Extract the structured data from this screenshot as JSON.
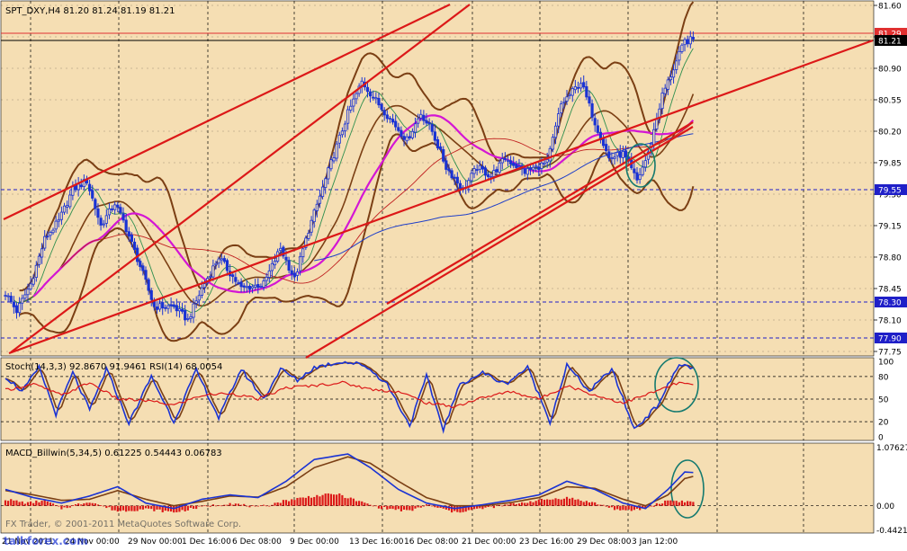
{
  "colors": {
    "panel_bg": "#f5deb3",
    "price_axis_bg": "#ffffff",
    "bull_candle": "#1a33d4",
    "bear_candle": "#1a33d4",
    "bollinger": "#7b3f14",
    "ma_fast": "#2f8f4f",
    "ma_magenta": "#d416d4",
    "ma_red": "#c02020",
    "ma_blue": "#1f3fc8",
    "trendline": "#dc1818",
    "hline_dash": "#1f1fc8",
    "ellipse": "#157a6f",
    "stoch_main": "#1a33d4",
    "stoch_signal": "#7b3f14",
    "rsi": "#dc1818",
    "macd_hist": "#dc1818",
    "macd_line": "#1a33d4",
    "macd_signal": "#7b3f14",
    "text": "#000000"
  },
  "price_panel": {
    "header": "SPT_DXY,H4  81.20 81.24 81.19 81.21",
    "ticks": [
      "81.60",
      "81.25",
      "80.90",
      "80.55",
      "80.20",
      "79.85",
      "79.50",
      "79.15",
      "78.80",
      "78.45",
      "78.10",
      "77.75"
    ],
    "tick_values": [
      81.6,
      81.25,
      80.9,
      80.55,
      80.2,
      79.85,
      79.5,
      79.15,
      78.8,
      78.45,
      78.1,
      77.75
    ],
    "ylim": [
      77.7,
      81.65
    ],
    "markers": [
      {
        "label": "81.29",
        "value": 81.29,
        "bg": "#e03030"
      },
      {
        "label": "81.21",
        "value": 81.21,
        "bg": "#000000"
      },
      {
        "label": "79.55",
        "value": 79.55,
        "bg": "#1f1fc8"
      },
      {
        "label": "78.30",
        "value": 78.3,
        "bg": "#1f1fc8"
      },
      {
        "label": "77.90",
        "value": 77.9,
        "bg": "#1f1fc8"
      }
    ]
  },
  "stoch_panel": {
    "header": "Stoch(14,3,3) 92.8670 91.9461  RSI(14) 68.0054",
    "ticks": [
      "100",
      "80",
      "50",
      "20",
      "0"
    ],
    "tick_values": [
      100,
      80,
      50,
      20,
      0
    ],
    "ylim": [
      -5,
      105
    ]
  },
  "macd_panel": {
    "header": "MACD_Billwin(5,34,5) 0.61225 0.54443 0.06783",
    "ticks": [
      "1.07627",
      "0.00",
      "-0.44218"
    ],
    "tick_values": [
      1.07627,
      0.0,
      -0.44218
    ],
    "ylim": [
      -0.5,
      1.15
    ]
  },
  "time_axis": {
    "labels": [
      "21 Nov 2011",
      "24 Nov 00:00",
      "29 Nov 00:00",
      "1 Dec 16:00",
      "6 Dec 08:00",
      "9 Dec 00:00",
      "13 Dec 16:00",
      "16 Dec 08:00",
      "21 Dec 00:00",
      "23 Dec 16:00",
      "29 Dec 08:00",
      "3 Jan 12:00"
    ]
  },
  "watermark": {
    "text": "FX Trader, © 2001-2011 MetaQuotes Software Corp.",
    "site": "talkforex.com"
  },
  "chart_data": {
    "type": "candlestick",
    "title": "SPT_DXY,H4",
    "last_quote": {
      "open": 81.2,
      "high": 81.24,
      "low": 81.19,
      "close": 81.21
    },
    "price_anchors": [
      [
        0,
        78.4
      ],
      [
        4,
        78.2
      ],
      [
        9,
        78.5
      ],
      [
        14,
        79.0
      ],
      [
        19,
        79.2
      ],
      [
        24,
        79.55
      ],
      [
        29,
        79.65
      ],
      [
        34,
        79.15
      ],
      [
        39,
        79.4
      ],
      [
        42,
        79.2
      ],
      [
        48,
        78.7
      ],
      [
        53,
        78.25
      ],
      [
        60,
        78.25
      ],
      [
        65,
        78.1
      ],
      [
        70,
        78.45
      ],
      [
        76,
        78.8
      ],
      [
        84,
        78.45
      ],
      [
        92,
        78.5
      ],
      [
        98,
        78.9
      ],
      [
        103,
        78.55
      ],
      [
        108,
        79.1
      ],
      [
        116,
        79.85
      ],
      [
        122,
        80.4
      ],
      [
        127,
        80.75
      ],
      [
        133,
        80.5
      ],
      [
        138,
        80.3
      ],
      [
        143,
        80.1
      ],
      [
        148,
        80.4
      ],
      [
        152,
        80.2
      ],
      [
        157,
        79.8
      ],
      [
        163,
        79.55
      ],
      [
        168,
        79.8
      ],
      [
        173,
        79.7
      ],
      [
        178,
        79.9
      ],
      [
        185,
        79.75
      ],
      [
        193,
        79.85
      ],
      [
        198,
        80.5
      ],
      [
        205,
        80.75
      ],
      [
        210,
        80.3
      ],
      [
        215,
        79.9
      ],
      [
        220,
        79.95
      ],
      [
        225,
        79.65
      ],
      [
        229,
        79.95
      ],
      [
        234,
        80.6
      ],
      [
        238,
        80.9
      ],
      [
        242,
        81.2
      ],
      [
        245,
        81.22
      ]
    ],
    "stoch_main_anchors": [
      [
        0,
        80
      ],
      [
        6,
        60
      ],
      [
        12,
        92
      ],
      [
        18,
        30
      ],
      [
        24,
        85
      ],
      [
        30,
        35
      ],
      [
        36,
        90
      ],
      [
        44,
        18
      ],
      [
        52,
        80
      ],
      [
        60,
        20
      ],
      [
        68,
        88
      ],
      [
        76,
        25
      ],
      [
        84,
        90
      ],
      [
        92,
        50
      ],
      [
        98,
        90
      ],
      [
        104,
        75
      ],
      [
        110,
        92
      ],
      [
        120,
        100
      ],
      [
        128,
        95
      ],
      [
        136,
        70
      ],
      [
        144,
        15
      ],
      [
        150,
        80
      ],
      [
        156,
        10
      ],
      [
        162,
        70
      ],
      [
        170,
        85
      ],
      [
        178,
        70
      ],
      [
        186,
        92
      ],
      [
        194,
        20
      ],
      [
        200,
        95
      ],
      [
        208,
        60
      ],
      [
        216,
        90
      ],
      [
        224,
        10
      ],
      [
        232,
        40
      ],
      [
        240,
        96
      ],
      [
        245,
        92
      ]
    ],
    "rsi_anchors": [
      [
        0,
        62
      ],
      [
        10,
        70
      ],
      [
        20,
        55
      ],
      [
        30,
        72
      ],
      [
        40,
        50
      ],
      [
        50,
        48
      ],
      [
        60,
        42
      ],
      [
        70,
        55
      ],
      [
        80,
        58
      ],
      [
        90,
        50
      ],
      [
        100,
        65
      ],
      [
        110,
        68
      ],
      [
        120,
        72
      ],
      [
        130,
        63
      ],
      [
        140,
        60
      ],
      [
        150,
        45
      ],
      [
        160,
        40
      ],
      [
        170,
        52
      ],
      [
        180,
        60
      ],
      [
        190,
        50
      ],
      [
        200,
        68
      ],
      [
        210,
        55
      ],
      [
        220,
        45
      ],
      [
        230,
        58
      ],
      [
        240,
        72
      ],
      [
        245,
        68
      ]
    ],
    "macd_hist_anchors": [
      [
        0,
        0.12
      ],
      [
        8,
        0.05
      ],
      [
        14,
        0.1
      ],
      [
        20,
        -0.05
      ],
      [
        30,
        0.08
      ],
      [
        40,
        -0.1
      ],
      [
        50,
        -0.06
      ],
      [
        60,
        -0.12
      ],
      [
        70,
        -0.02
      ],
      [
        80,
        0.05
      ],
      [
        90,
        -0.03
      ],
      [
        100,
        0.1
      ],
      [
        110,
        0.18
      ],
      [
        118,
        0.22
      ],
      [
        126,
        0.08
      ],
      [
        134,
        -0.04
      ],
      [
        144,
        -0.1
      ],
      [
        150,
        0.02
      ],
      [
        160,
        -0.12
      ],
      [
        170,
        -0.05
      ],
      [
        180,
        0.03
      ],
      [
        190,
        0.1
      ],
      [
        200,
        0.15
      ],
      [
        210,
        0.05
      ],
      [
        220,
        -0.1
      ],
      [
        228,
        -0.05
      ],
      [
        236,
        0.1
      ],
      [
        245,
        0.07
      ]
    ],
    "macd_line_anchors": [
      [
        0,
        0.3
      ],
      [
        10,
        0.15
      ],
      [
        20,
        0.05
      ],
      [
        30,
        0.18
      ],
      [
        40,
        0.35
      ],
      [
        50,
        0.05
      ],
      [
        60,
        -0.05
      ],
      [
        70,
        0.12
      ],
      [
        80,
        0.2
      ],
      [
        90,
        0.15
      ],
      [
        100,
        0.45
      ],
      [
        110,
        0.85
      ],
      [
        122,
        0.95
      ],
      [
        130,
        0.7
      ],
      [
        140,
        0.3
      ],
      [
        150,
        0.05
      ],
      [
        160,
        -0.05
      ],
      [
        170,
        0.02
      ],
      [
        180,
        0.1
      ],
      [
        190,
        0.2
      ],
      [
        200,
        0.45
      ],
      [
        210,
        0.3
      ],
      [
        220,
        0.05
      ],
      [
        228,
        -0.05
      ],
      [
        236,
        0.3
      ],
      [
        242,
        0.62
      ],
      [
        245,
        0.61
      ]
    ],
    "macd_signal_anchors": [
      [
        0,
        0.28
      ],
      [
        10,
        0.2
      ],
      [
        20,
        0.1
      ],
      [
        30,
        0.12
      ],
      [
        40,
        0.28
      ],
      [
        50,
        0.12
      ],
      [
        60,
        0.0
      ],
      [
        70,
        0.08
      ],
      [
        80,
        0.18
      ],
      [
        90,
        0.16
      ],
      [
        100,
        0.35
      ],
      [
        110,
        0.7
      ],
      [
        122,
        0.9
      ],
      [
        130,
        0.78
      ],
      [
        140,
        0.45
      ],
      [
        150,
        0.15
      ],
      [
        160,
        0.0
      ],
      [
        170,
        0.0
      ],
      [
        180,
        0.06
      ],
      [
        190,
        0.15
      ],
      [
        200,
        0.35
      ],
      [
        210,
        0.32
      ],
      [
        220,
        0.12
      ],
      [
        228,
        0.0
      ],
      [
        236,
        0.2
      ],
      [
        242,
        0.5
      ],
      [
        245,
        0.54
      ]
    ]
  }
}
